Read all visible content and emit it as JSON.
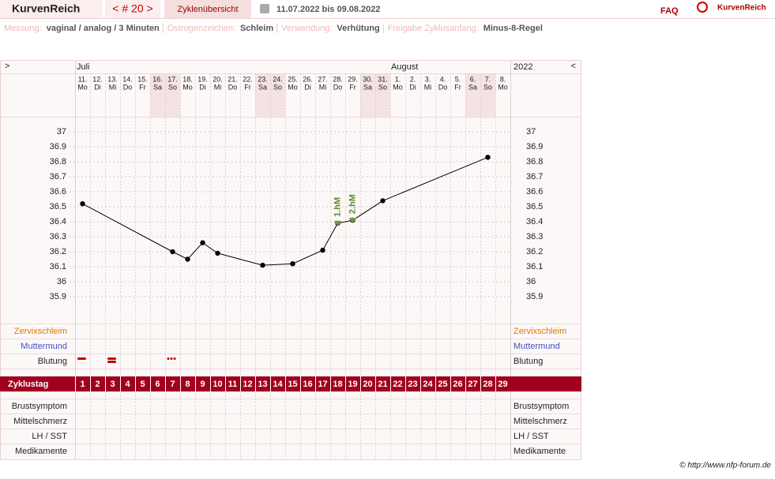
{
  "header": {
    "brand": "KurvenReich",
    "cycle_nav": "< # 20 >",
    "tab": "Zyklenübersicht",
    "date_range": "11.07.2022 bis 09.08.2022",
    "faq": "FAQ",
    "logo": "KurvenReich"
  },
  "settings": [
    {
      "label": "Messung:",
      "value": "vaginal / analog / 3 Minuten"
    },
    {
      "label": "Östrogenzeichen:",
      "value": "Schleim"
    },
    {
      "label": "Verwendung:",
      "value": "Verhütung"
    },
    {
      "label": "Freigabe Zyklusanfang:",
      "value": "Minus-8-Regel"
    }
  ],
  "calendar": {
    "nav_left": ">",
    "nav_right": "<",
    "months": [
      "Juli",
      "August"
    ],
    "year": "2022",
    "dates": [
      [
        "11.",
        "Mo"
      ],
      [
        "12.",
        "Di"
      ],
      [
        "13.",
        "Mi"
      ],
      [
        "14.",
        "Do"
      ],
      [
        "15.",
        "Fr"
      ],
      [
        "16.",
        "Sa"
      ],
      [
        "17.",
        "So"
      ],
      [
        "18.",
        "Mo"
      ],
      [
        "19.",
        "Di"
      ],
      [
        "20.",
        "Mi"
      ],
      [
        "21.",
        "Do"
      ],
      [
        "22.",
        "Fr"
      ],
      [
        "23.",
        "Sa"
      ],
      [
        "24.",
        "So"
      ],
      [
        "25.",
        "Mo"
      ],
      [
        "26.",
        "Di"
      ],
      [
        "27.",
        "Mi"
      ],
      [
        "28.",
        "Do"
      ],
      [
        "29.",
        "Fr"
      ],
      [
        "30.",
        "Sa"
      ],
      [
        "31.",
        "So"
      ],
      [
        "1.",
        "Mo"
      ],
      [
        "2.",
        "Di"
      ],
      [
        "3.",
        "Mi"
      ],
      [
        "4.",
        "Do"
      ],
      [
        "5.",
        "Fr"
      ],
      [
        "6.",
        "Sa"
      ],
      [
        "7.",
        "So"
      ],
      [
        "8.",
        "Mo"
      ]
    ]
  },
  "rows": {
    "cervical": "Zervixschleim",
    "cervix": "Muttermund",
    "bleeding": "Blutung",
    "breast": "Brustsymptom",
    "midpain": "Mittelschmerz",
    "lh": "LH / SST",
    "meds": "Medikamente"
  },
  "chart_data": {
    "type": "line",
    "x_label": "Zyklustag",
    "color": "#000000",
    "x": [
      1,
      7,
      8,
      9,
      10,
      13,
      15,
      17,
      18,
      19,
      21,
      28
    ],
    "values": [
      36.52,
      36.2,
      36.15,
      36.26,
      36.19,
      36.11,
      36.12,
      36.21,
      36.39,
      36.41,
      36.54,
      36.83
    ],
    "xlim": [
      0.5,
      29.5
    ],
    "xticks": [
      1,
      2,
      3,
      4,
      5,
      6,
      7,
      8,
      9,
      10,
      11,
      12,
      13,
      14,
      15,
      16,
      17,
      18,
      19,
      20,
      21,
      22,
      23,
      24,
      25,
      26,
      27,
      28,
      29
    ],
    "ylim": [
      35.9,
      37
    ],
    "yticks": [
      35.9,
      36,
      36.1,
      36.2,
      36.3,
      36.4,
      36.5,
      36.6,
      36.7,
      36.8,
      36.9,
      37
    ],
    "annotations": [
      {
        "text": "1.hM",
        "x": 18
      },
      {
        "text": "2.hM",
        "x": 19
      }
    ]
  },
  "footer": "© http://www.nfp-forum.de"
}
